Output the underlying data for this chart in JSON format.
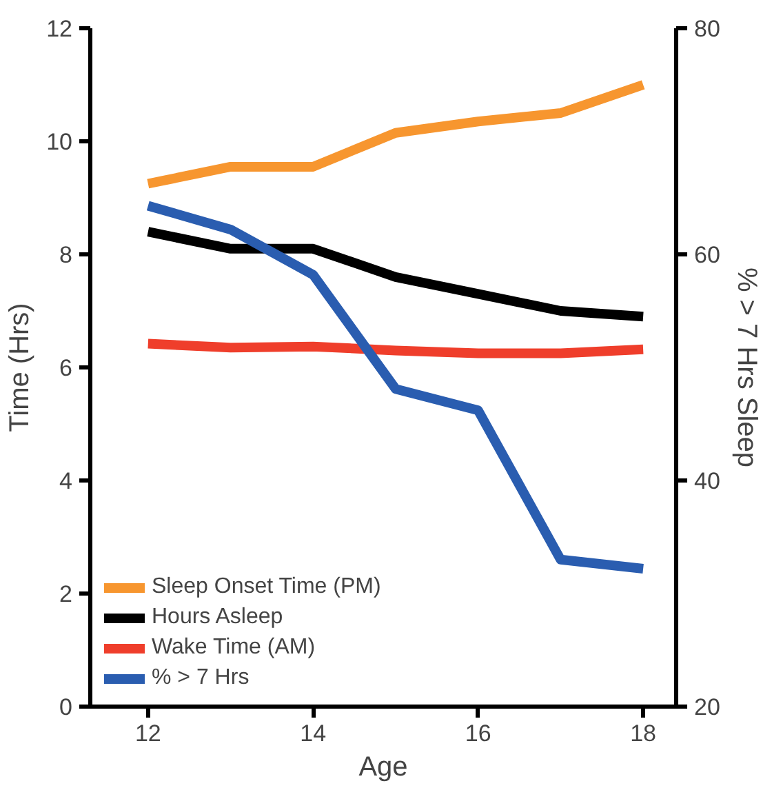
{
  "chart_data": {
    "type": "line",
    "xlabel": "Age",
    "ylabel": "Time (Hrs)",
    "y2label": "% > 7 Hrs Sleep",
    "x": [
      12,
      13,
      14,
      15,
      16,
      17,
      18
    ],
    "xlim": [
      11.3,
      18.4
    ],
    "xticks": [
      12,
      14,
      16,
      18
    ],
    "ylim": [
      0,
      12
    ],
    "yticks": [
      0,
      2,
      4,
      6,
      8,
      10,
      12
    ],
    "y2lim": [
      20,
      80
    ],
    "y2ticks": [
      20,
      40,
      60,
      80
    ],
    "grid": false,
    "legend": "bottom left",
    "line_style": "solid",
    "series": [
      {
        "name": "Sleep Onset Time (PM)",
        "color": "#f7962f",
        "values": [
          9.25,
          9.55,
          9.55,
          10.15,
          10.35,
          10.5,
          11.0
        ]
      },
      {
        "name": "Hours Asleep",
        "color": "#000000",
        "values": [
          8.4,
          8.1,
          8.1,
          7.6,
          7.3,
          7.0,
          6.9
        ]
      },
      {
        "name": "Wake Time (AM)",
        "color": "#ef3e2b",
        "values": [
          6.42,
          6.35,
          6.37,
          6.3,
          6.25,
          6.25,
          6.32
        ]
      },
      {
        "name": "% > 7 Hrs",
        "color": "#2a5db0",
        "axis": "y2",
        "values": [
          64.3,
          62.2,
          58.2,
          48.1,
          46.2,
          33.0,
          32.2
        ]
      }
    ]
  }
}
